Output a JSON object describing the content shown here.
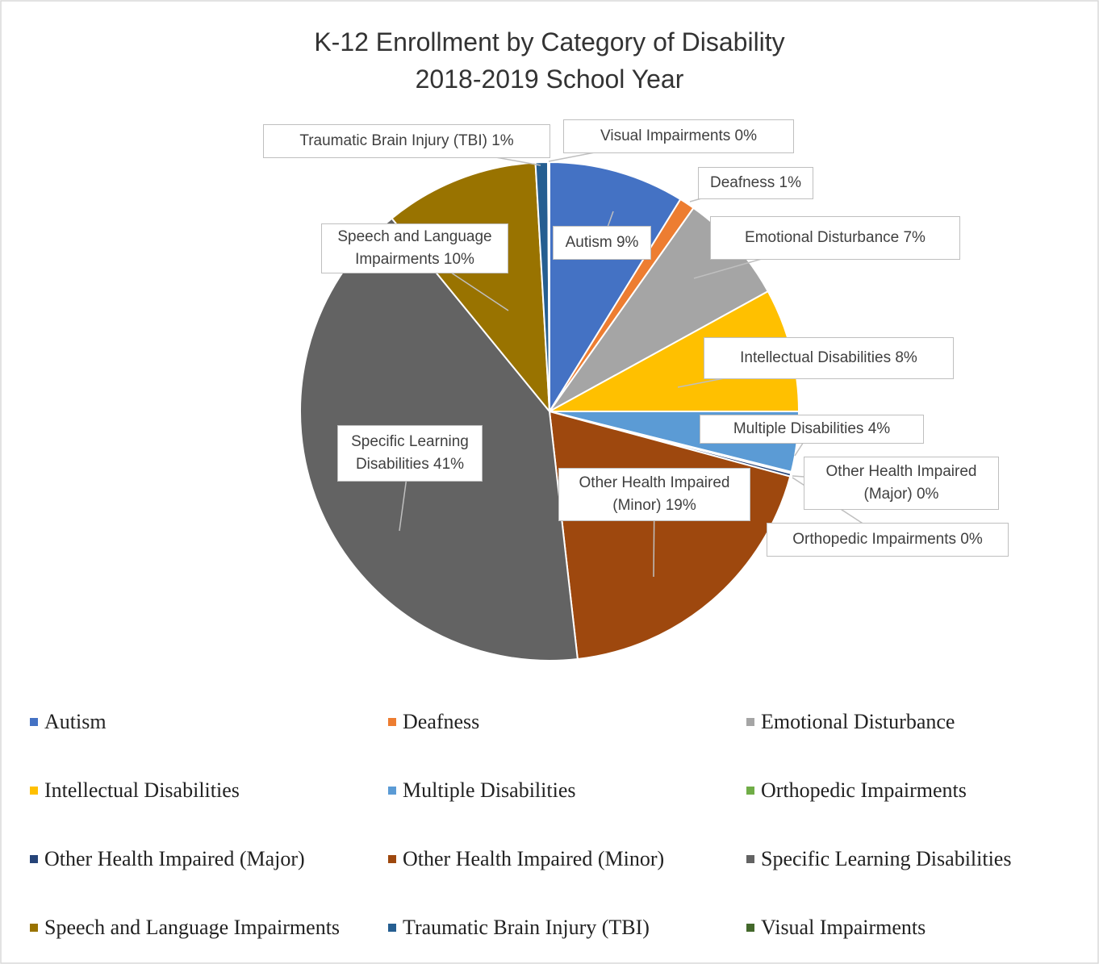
{
  "chart_data": {
    "type": "pie",
    "title": "K-12 Enrollment by Category of Disability",
    "subtitle": "2018-2019 School Year",
    "categories": [
      "Autism",
      "Deafness",
      "Emotional Disturbance",
      "Intellectual Disabilities",
      "Multiple Disabilities",
      "Orthopedic Impairments",
      "Other Health Impaired (Major)",
      "Other Health Impaired (Minor)",
      "Specific Learning Disabilities",
      "Speech and Language Impairments",
      "Traumatic Brain Injury (TBI)",
      "Visual Impairments"
    ],
    "values": [
      8.8,
      1.0,
      7.2,
      8.0,
      3.9,
      0.1,
      0.2,
      19.0,
      40.9,
      10.0,
      0.8,
      0.1
    ],
    "value_labels": [
      "9%",
      "1%",
      "7%",
      "8%",
      "4%",
      "0%",
      "0%",
      "19%",
      "41%",
      "10%",
      "1%",
      "0%"
    ],
    "colors": [
      "#4472c4",
      "#ed7d31",
      "#a5a5a5",
      "#ffc000",
      "#5b9bd5",
      "#70ad47",
      "#264478",
      "#9e480e",
      "#636363",
      "#997300",
      "#255e91",
      "#43682b"
    ],
    "legend": "bottom"
  }
}
